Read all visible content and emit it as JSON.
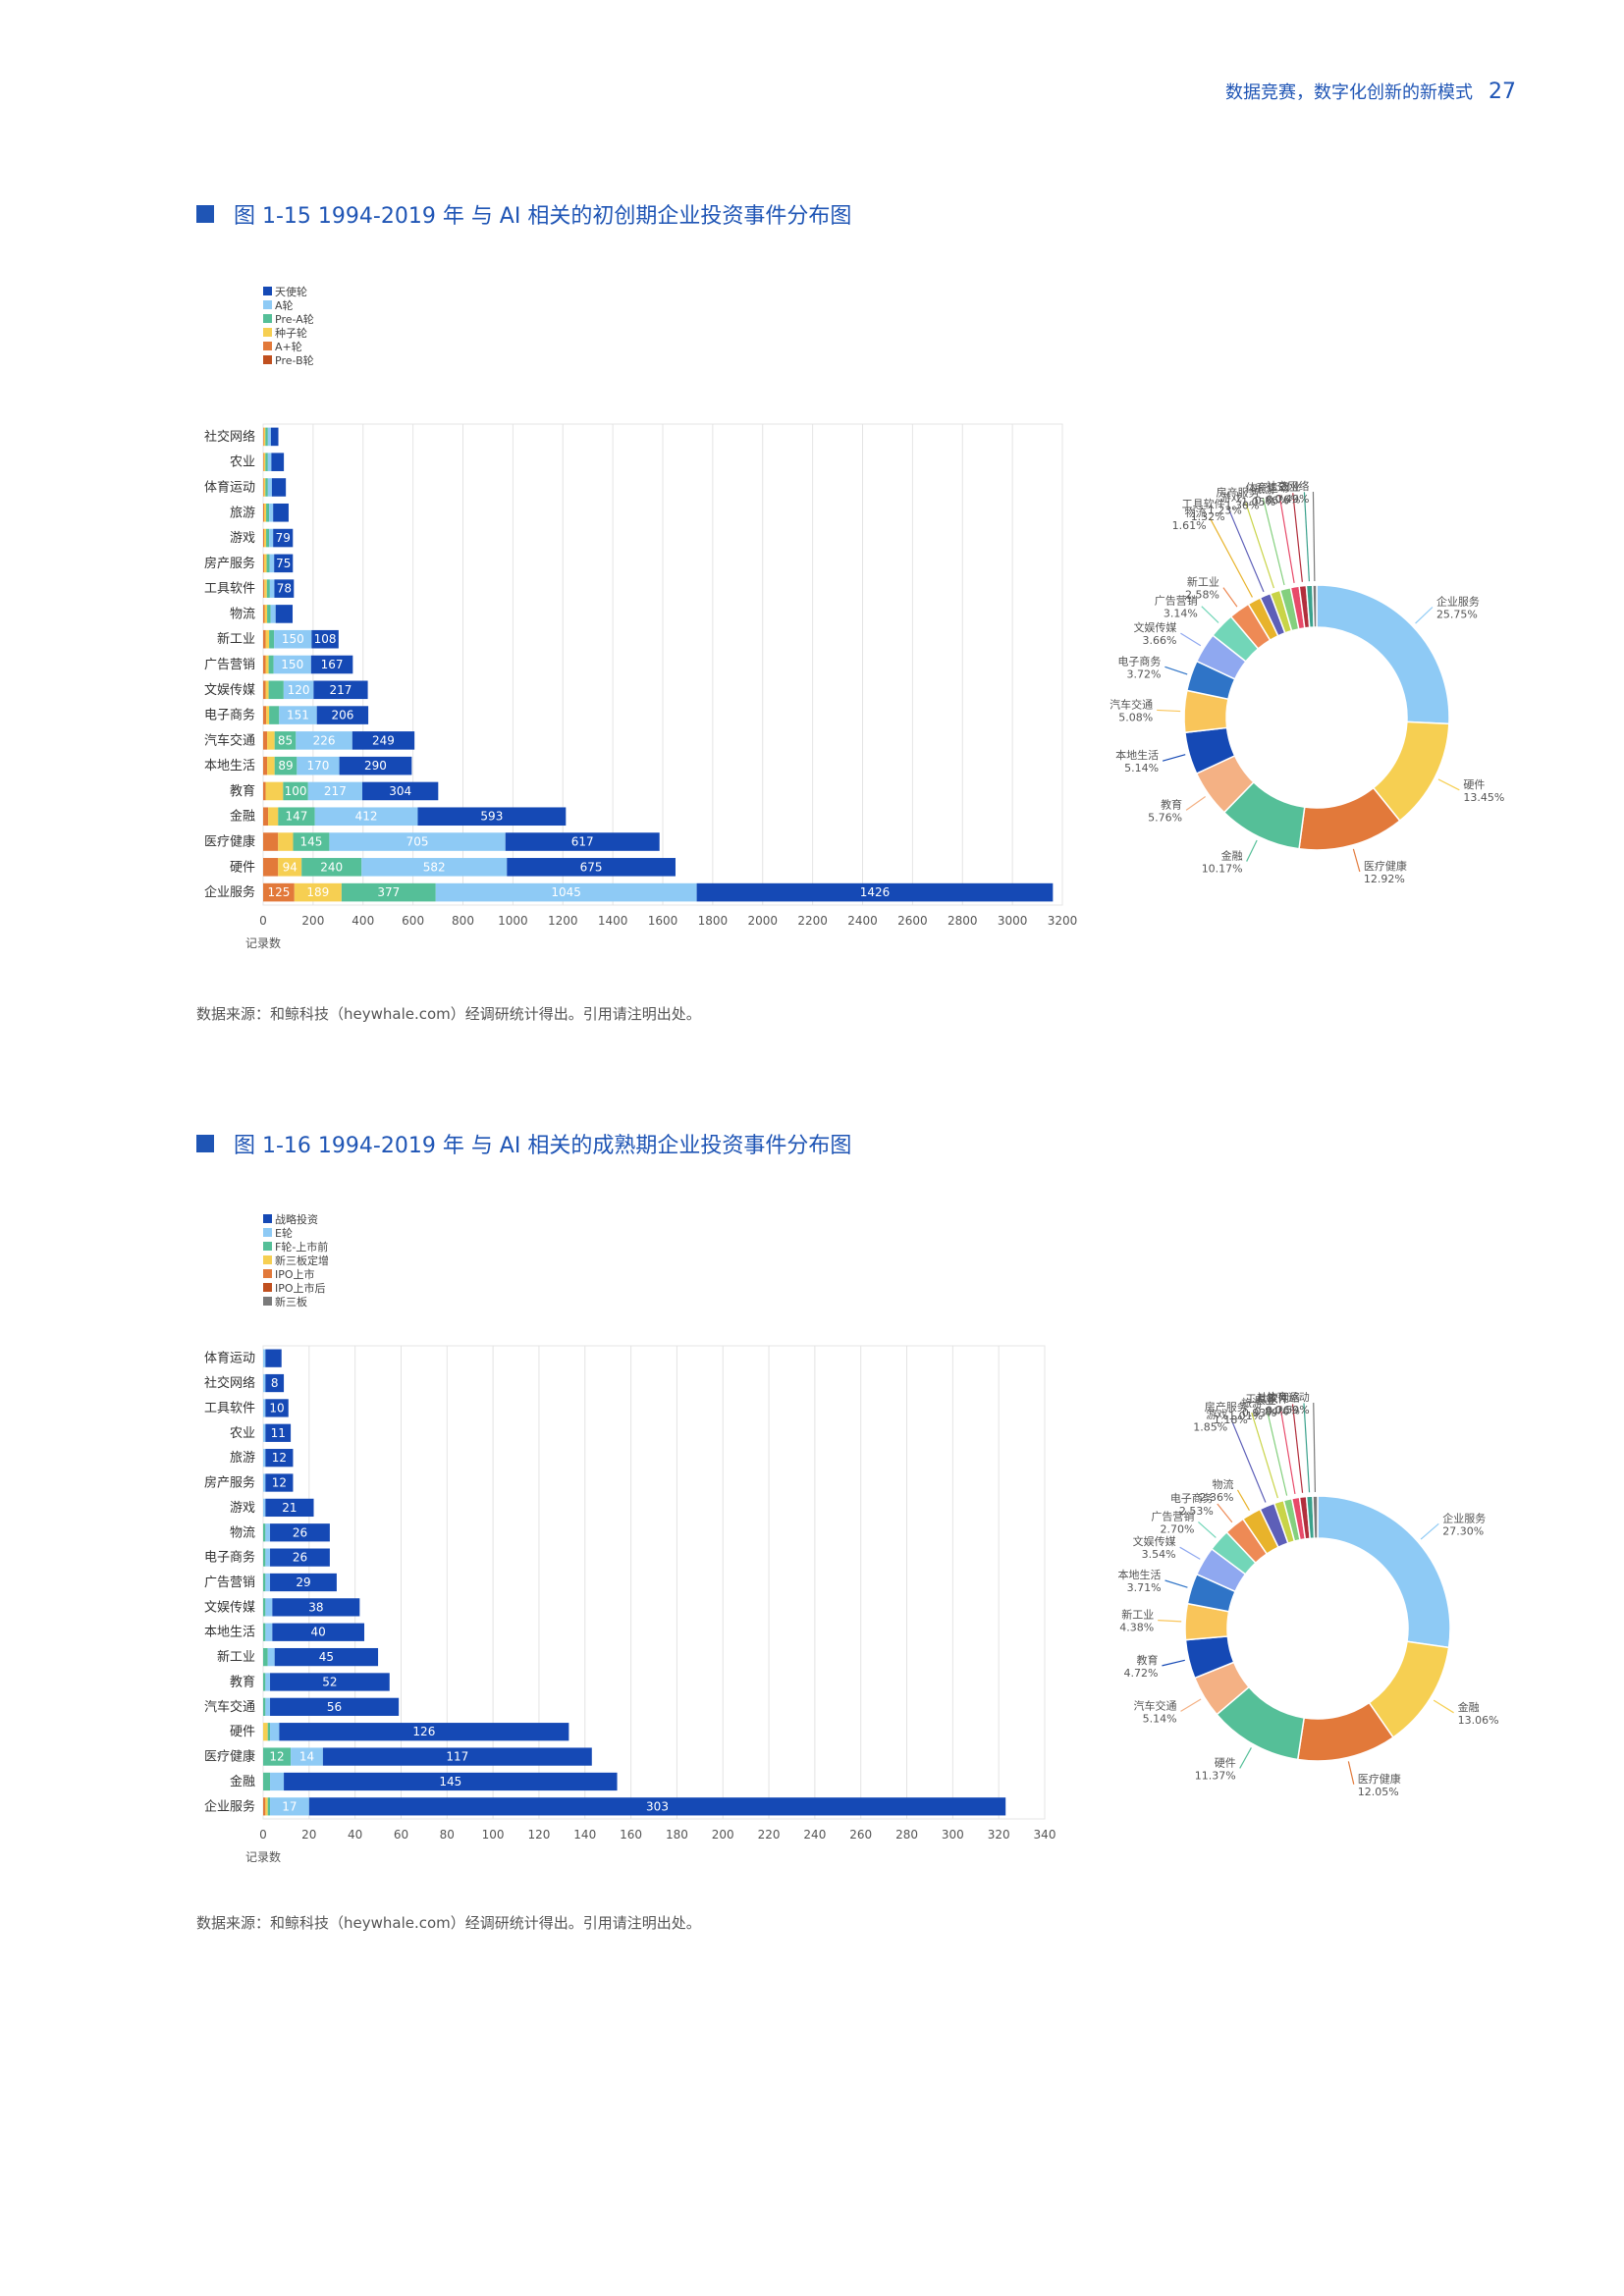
{
  "header": {
    "text": "数据竞赛，数字化创新的新模式",
    "page": "27"
  },
  "fig1": {
    "title": "图 1-15 1994-2019 年 与 AI 相关的初创期企业投资事件分布图"
  },
  "fig2": {
    "title": "图 1-16 1994-2019 年 与 AI 相关的成熟期企业投资事件分布图"
  },
  "source1": "数据来源：和鲸科技（heywhale.com）经调研统计得出。引用请注明出处。",
  "source2": "数据来源：和鲸科技（heywhale.com）经调研统计得出。引用请注明出处。",
  "chart_data": [
    {
      "type": "bar",
      "orientation": "horizontal",
      "stacked": true,
      "xlabel": "记录数",
      "xlim": [
        0,
        3200
      ],
      "xticks": [
        0,
        200,
        400,
        600,
        800,
        1000,
        1200,
        1400,
        1600,
        1800,
        2000,
        2200,
        2400,
        2600,
        2800,
        3000,
        3200
      ],
      "legend": "top-left",
      "categories": [
        "社交网络",
        "农业",
        "体育运动",
        "旅游",
        "游戏",
        "房产服务",
        "工具软件",
        "物流",
        "新工业",
        "广告营销",
        "文娱传媒",
        "电子商务",
        "汽车交通",
        "本地生活",
        "教育",
        "金融",
        "医疗健康",
        "硬件",
        "企业服务"
      ],
      "series": [
        {
          "name": "Pre-B轮",
          "color": "#c0501f",
          "values": [
            0,
            0,
            0,
            0,
            0,
            0,
            0,
            0,
            0,
            0,
            0,
            0,
            0,
            0,
            0,
            0,
            0,
            0,
            0
          ]
        },
        {
          "name": "A+轮",
          "color": "#e2793a",
          "values": [
            3,
            3,
            3,
            4,
            4,
            4,
            5,
            6,
            10,
            10,
            10,
            12,
            16,
            16,
            10,
            20,
            60,
            60,
            125
          ]
        },
        {
          "name": "种子轮",
          "color": "#f6cf52",
          "values": [
            6,
            6,
            6,
            8,
            8,
            10,
            10,
            10,
            14,
            12,
            12,
            12,
            30,
            30,
            70,
            40,
            60,
            94,
            189
          ]
        },
        {
          "name": "Pre-A轮",
          "color": "#55bf98",
          "values": [
            10,
            10,
            10,
            12,
            12,
            12,
            12,
            14,
            20,
            20,
            60,
            40,
            85,
            89,
            100,
            147,
            145,
            240,
            377
          ]
        },
        {
          "name": "A轮",
          "color": "#8ecaf5",
          "values": [
            12,
            14,
            16,
            16,
            16,
            18,
            18,
            20,
            150,
            150,
            120,
            151,
            226,
            170,
            217,
            412,
            705,
            582,
            1045
          ]
        },
        {
          "name": "天使轮",
          "color": "#1549b5",
          "values": [
            30,
            50,
            56,
            62,
            79,
            75,
            78,
            68,
            108,
            167,
            217,
            206,
            249,
            290,
            304,
            593,
            617,
            675,
            1426
          ]
        }
      ]
    },
    {
      "type": "pie",
      "donut": true,
      "slices": [
        {
          "label": "企业服务",
          "value": 25.75,
          "pct": "25.75%",
          "color": "#8ecaf5"
        },
        {
          "label": "硬件",
          "value": 13.45,
          "pct": "13.45%",
          "color": "#f6cf52"
        },
        {
          "label": "医疗健康",
          "value": 12.92,
          "pct": "12.92%",
          "color": "#e2793a"
        },
        {
          "label": "金融",
          "value": 10.17,
          "pct": "10.17%",
          "color": "#55bf98"
        },
        {
          "label": "教育",
          "value": 5.76,
          "pct": "5.76%",
          "color": "#f4b184"
        },
        {
          "label": "本地生活",
          "value": 5.14,
          "pct": "5.14%",
          "color": "#1549b5"
        },
        {
          "label": "汽车交通",
          "value": 5.08,
          "pct": "5.08%",
          "color": "#f9c55a"
        },
        {
          "label": "电子商务",
          "value": 3.72,
          "pct": "3.72%",
          "color": "#2f74c7"
        },
        {
          "label": "文娱传媒",
          "value": 3.66,
          "pct": "3.66%",
          "color": "#8fa8f0"
        },
        {
          "label": "广告营销",
          "value": 3.14,
          "pct": "3.14%",
          "color": "#72d6b8"
        },
        {
          "label": "新工业",
          "value": 2.58,
          "pct": "2.58%",
          "color": "#ee8a55"
        },
        {
          "label": "物流",
          "value": 1.61,
          "pct": "1.61%",
          "color": "#e8b32b"
        },
        {
          "label": "工具软件",
          "value": 1.32,
          "pct": "1.32%",
          "color": "#5d5fb8"
        },
        {
          "label": "游戏",
          "value": 1.23,
          "pct": "1.23%",
          "color": "#c9d448"
        },
        {
          "label": "房产服务",
          "value": 1.3,
          "pct": "1.30%",
          "color": "#84d07e"
        },
        {
          "label": "旅游",
          "value": 1.05,
          "pct": "1.05%",
          "color": "#e84a6a"
        },
        {
          "label": "体育运动",
          "value": 0.86,
          "pct": "0.86%",
          "color": "#b22e3c"
        },
        {
          "label": "农业",
          "value": 0.76,
          "pct": "0.76%",
          "color": "#3aa18c"
        },
        {
          "label": "社交网络",
          "value": 0.49,
          "pct": "0.49%",
          "color": "#7a7a7a"
        }
      ]
    },
    {
      "type": "bar",
      "orientation": "horizontal",
      "stacked": true,
      "xlabel": "记录数",
      "xlim": [
        0,
        340
      ],
      "xticks": [
        0,
        20,
        40,
        60,
        80,
        100,
        120,
        140,
        160,
        180,
        200,
        220,
        240,
        260,
        280,
        300,
        320,
        340
      ],
      "legend": "top-left",
      "categories": [
        "体育运动",
        "社交网络",
        "工具软件",
        "农业",
        "旅游",
        "房产服务",
        "游戏",
        "物流",
        "电子商务",
        "广告营销",
        "文娱传媒",
        "本地生活",
        "新工业",
        "教育",
        "汽车交通",
        "硬件",
        "医疗健康",
        "金融",
        "企业服务"
      ],
      "series": [
        {
          "name": "新三板",
          "color": "#7a7a7a",
          "values": [
            0,
            0,
            0,
            0,
            0,
            0,
            0,
            0,
            0,
            0,
            0,
            0,
            0,
            0,
            0,
            0,
            0,
            0,
            0
          ]
        },
        {
          "name": "IPO上市后",
          "color": "#c0501f",
          "values": [
            0,
            0,
            0,
            0,
            0,
            0,
            0,
            0,
            0,
            0,
            0,
            0,
            0,
            0,
            0,
            0,
            0,
            0,
            0
          ]
        },
        {
          "name": "IPO上市",
          "color": "#e2793a",
          "values": [
            0,
            0,
            0,
            0,
            0,
            0,
            0,
            0,
            0,
            0,
            0,
            0,
            0,
            0,
            0,
            0,
            0,
            0,
            1
          ]
        },
        {
          "name": "新三板定增",
          "color": "#f6cf52",
          "values": [
            0,
            0,
            0,
            0,
            0,
            0,
            0,
            0,
            0,
            0,
            0,
            0,
            0,
            0,
            0,
            2,
            0,
            0,
            1
          ]
        },
        {
          "name": "F轮-上市前",
          "color": "#55bf98",
          "values": [
            0,
            0,
            0,
            0,
            0,
            0,
            0,
            1,
            1,
            1,
            1,
            1,
            2,
            1,
            1,
            1,
            12,
            3,
            1
          ]
        },
        {
          "name": "E轮",
          "color": "#8ecaf5",
          "values": [
            1,
            1,
            1,
            1,
            1,
            1,
            1,
            2,
            2,
            2,
            3,
            3,
            3,
            2,
            2,
            4,
            14,
            6,
            17
          ]
        },
        {
          "name": "战略投资",
          "color": "#1549b5",
          "values": [
            7,
            8,
            10,
            11,
            12,
            12,
            21,
            26,
            26,
            29,
            38,
            40,
            45,
            52,
            56,
            126,
            117,
            145,
            303
          ]
        }
      ]
    },
    {
      "type": "pie",
      "donut": true,
      "slices": [
        {
          "label": "企业服务",
          "value": 27.3,
          "pct": "27.30%",
          "color": "#8ecaf5"
        },
        {
          "label": "金融",
          "value": 13.06,
          "pct": "13.06%",
          "color": "#f6cf52"
        },
        {
          "label": "医疗健康",
          "value": 12.05,
          "pct": "12.05%",
          "color": "#e2793a"
        },
        {
          "label": "硬件",
          "value": 11.37,
          "pct": "11.37%",
          "color": "#55bf98"
        },
        {
          "label": "汽车交通",
          "value": 5.14,
          "pct": "5.14%",
          "color": "#f4b184"
        },
        {
          "label": "教育",
          "value": 4.72,
          "pct": "4.72%",
          "color": "#1549b5"
        },
        {
          "label": "新工业",
          "value": 4.38,
          "pct": "4.38%",
          "color": "#f9c55a"
        },
        {
          "label": "本地生活",
          "value": 3.71,
          "pct": "3.71%",
          "color": "#2f74c7"
        },
        {
          "label": "文娱传媒",
          "value": 3.54,
          "pct": "3.54%",
          "color": "#8fa8f0"
        },
        {
          "label": "广告营销",
          "value": 2.7,
          "pct": "2.70%",
          "color": "#72d6b8"
        },
        {
          "label": "电子商务",
          "value": 2.53,
          "pct": "2.53%",
          "color": "#ee8a55"
        },
        {
          "label": "物流",
          "value": 2.36,
          "pct": "2.36%",
          "color": "#e8b32b"
        },
        {
          "label": "游戏",
          "value": 1.85,
          "pct": "1.85%",
          "color": "#5d5fb8"
        },
        {
          "label": "房产服务",
          "value": 1.18,
          "pct": "1.18%",
          "color": "#c9d448"
        },
        {
          "label": "旅游",
          "value": 1.01,
          "pct": "1.01%",
          "color": "#84d07e"
        },
        {
          "label": "农业",
          "value": 0.93,
          "pct": "0.93%",
          "color": "#e84a6a"
        },
        {
          "label": "工具软件",
          "value": 0.84,
          "pct": "0.84%",
          "color": "#b22e3c"
        },
        {
          "label": "社交网络",
          "value": 0.76,
          "pct": "0.76%",
          "color": "#3aa18c"
        },
        {
          "label": "体育运动",
          "value": 0.59,
          "pct": "0.59%",
          "color": "#7a7a7a"
        }
      ]
    }
  ]
}
